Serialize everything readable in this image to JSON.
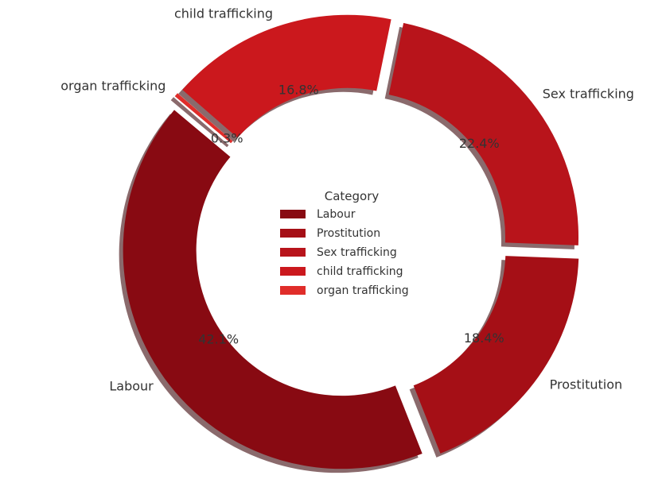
{
  "chart_data": {
    "type": "pie",
    "style": "donut",
    "legend": {
      "title": "Category",
      "placement": "center",
      "entries": [
        "Labour",
        "Prostitution",
        "Sex trafficking",
        "child trafficking",
        "organ trafficking"
      ]
    },
    "slices": [
      {
        "label": "Labour",
        "value": 42.1,
        "pct_label": "42.1%",
        "color": "#880a12"
      },
      {
        "label": "Prostitution",
        "value": 18.4,
        "pct_label": "18.4%",
        "color": "#a50f16"
      },
      {
        "label": "Sex trafficking",
        "value": 22.4,
        "pct_label": "22.4%",
        "color": "#b8141b"
      },
      {
        "label": "child trafficking",
        "value": 16.8,
        "pct_label": "16.8%",
        "color": "#cb181d"
      },
      {
        "label": "organ trafficking",
        "value": 0.3,
        "pct_label": "0.3%",
        "color": "#e02d2a"
      }
    ],
    "shadow": true,
    "exploded": true
  }
}
